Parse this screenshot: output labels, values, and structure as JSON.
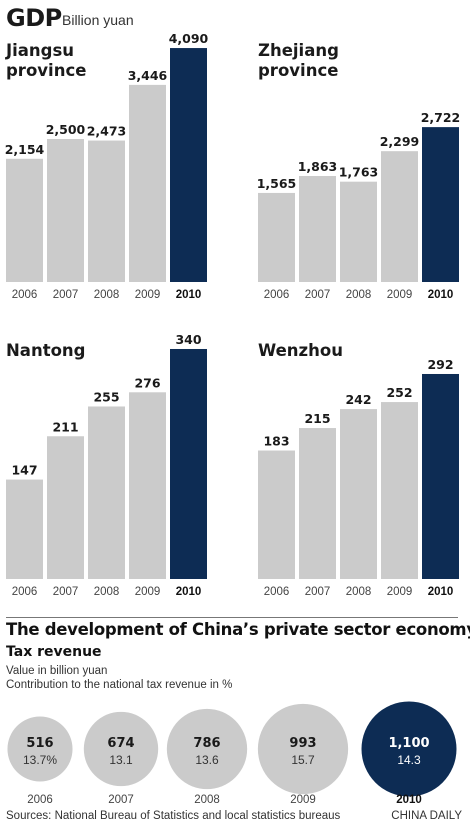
{
  "header": {
    "title": "GDP",
    "unit": "Billion yuan"
  },
  "chart_data": [
    {
      "type": "bar",
      "title": "Jiangsu province",
      "categories": [
        "2006",
        "2007",
        "2008",
        "2009",
        "2010"
      ],
      "values": [
        2154,
        2500,
        2473,
        3446,
        4090
      ],
      "labels": [
        "2,154",
        "2,500",
        "2,473",
        "3,446",
        "4,090"
      ],
      "highlight_index": 4
    },
    {
      "type": "bar",
      "title": "Zhejiang province",
      "categories": [
        "2006",
        "2007",
        "2008",
        "2009",
        "2010"
      ],
      "values": [
        1565,
        1863,
        1763,
        2299,
        2722
      ],
      "labels": [
        "1,565",
        "1,863",
        "1,763",
        "2,299",
        "2,722"
      ],
      "highlight_index": 4
    },
    {
      "type": "bar",
      "title": "Nantong",
      "categories": [
        "2006",
        "2007",
        "2008",
        "2009",
        "2010"
      ],
      "values": [
        147,
        211,
        255,
        276,
        340
      ],
      "labels": [
        "147",
        "211",
        "255",
        "276",
        "340"
      ],
      "highlight_index": 4
    },
    {
      "type": "bar",
      "title": "Wenzhou",
      "categories": [
        "2006",
        "2007",
        "2008",
        "2009",
        "2010"
      ],
      "values": [
        183,
        215,
        242,
        252,
        292
      ],
      "labels": [
        "183",
        "215",
        "242",
        "252",
        "292"
      ],
      "highlight_index": 4
    },
    {
      "type": "bubble",
      "title": "Tax revenue",
      "categories": [
        "2006",
        "2007",
        "2008",
        "2009",
        "2010"
      ],
      "values": [
        516,
        674,
        786,
        993,
        1100
      ],
      "value_labels": [
        "516",
        "674",
        "786",
        "993",
        "1,100"
      ],
      "percent_labels": [
        "13.7%",
        "13.1",
        "13.6",
        "15.7",
        "14.3"
      ],
      "highlight_index": 4
    }
  ],
  "sector": {
    "title": "The development of China’s private sector economy",
    "tax_title": "Tax revenue",
    "legend_value": "Value in billion yuan",
    "legend_percent": "Contribution to the national tax revenue in %"
  },
  "footer": {
    "sources": "Sources: National Bureau of Statistics and local statistics bureaus",
    "credit": "CHINA DAILY"
  },
  "colors": {
    "bar": "#cbcbcb",
    "highlight": "#0d2c54",
    "text": "#222222",
    "axis": "#555555"
  }
}
